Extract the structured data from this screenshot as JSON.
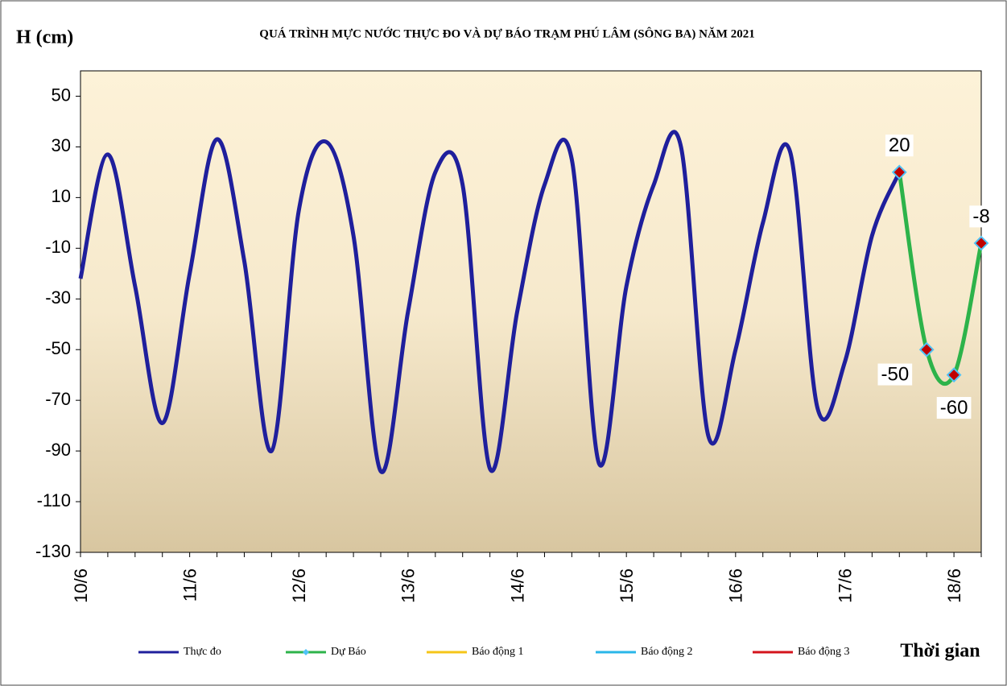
{
  "chart_data": {
    "type": "line",
    "title": "QUÁ TRÌNH MỰC NƯỚC THỰC ĐO VÀ DỰ BÁO TRẠM PHÚ LÂM (SÔNG BA) NĂM 2021",
    "y_label": "H (cm)",
    "x_label": "Thời gian",
    "categories": [
      "10/6",
      null,
      null,
      null,
      "11/6",
      null,
      null,
      null,
      "12/6",
      null,
      null,
      null,
      "13/6",
      null,
      null,
      null,
      "14/6",
      null,
      null,
      null,
      "15/6",
      null,
      null,
      null,
      "16/6",
      null,
      null,
      null,
      "17/6",
      null,
      null,
      null,
      "18/6",
      null
    ],
    "series": [
      {
        "name": "Thực đo",
        "color": "#1f1f9c",
        "marker": false,
        "values": [
          -22,
          27,
          -25,
          -79,
          -20,
          33,
          -15,
          -90,
          5,
          32,
          -5,
          -98,
          -35,
          20,
          15,
          -97,
          -35,
          15,
          25,
          -95,
          -25,
          15,
          30,
          -84,
          -50,
          0,
          28,
          -73,
          -55,
          -5,
          20,
          null,
          null,
          null
        ]
      },
      {
        "name": "Dự Báo",
        "color": "#2db34a",
        "marker": true,
        "values": [
          null,
          null,
          null,
          null,
          null,
          null,
          null,
          null,
          null,
          null,
          null,
          null,
          null,
          null,
          null,
          null,
          null,
          null,
          null,
          null,
          null,
          null,
          null,
          null,
          null,
          null,
          null,
          null,
          null,
          null,
          20,
          -50,
          -60,
          -8
        ]
      },
      {
        "name": "Báo động 1",
        "color": "#f5c518",
        "marker": false,
        "values": [
          null,
          null,
          null,
          null,
          null,
          null,
          null,
          null,
          null,
          null,
          null,
          null,
          null,
          null,
          null,
          null,
          null,
          null,
          null,
          null,
          null,
          null,
          null,
          null,
          null,
          null,
          null,
          null,
          null,
          null,
          null,
          null,
          null,
          null
        ]
      },
      {
        "name": "Báo động 2",
        "color": "#29b6e8",
        "marker": false,
        "values": [
          null,
          null,
          null,
          null,
          null,
          null,
          null,
          null,
          null,
          null,
          null,
          null,
          null,
          null,
          null,
          null,
          null,
          null,
          null,
          null,
          null,
          null,
          null,
          null,
          null,
          null,
          null,
          null,
          null,
          null,
          null,
          null,
          null,
          null
        ]
      },
      {
        "name": "Báo động 3",
        "color": "#d4141c",
        "marker": false,
        "values": [
          null,
          null,
          null,
          null,
          null,
          null,
          null,
          null,
          null,
          null,
          null,
          null,
          null,
          null,
          null,
          null,
          null,
          null,
          null,
          null,
          null,
          null,
          null,
          null,
          null,
          null,
          null,
          null,
          null,
          null,
          null,
          null,
          null,
          null
        ]
      }
    ],
    "ylim": [
      -130,
      60
    ],
    "yticks": [
      50,
      30,
      10,
      -10,
      -30,
      -50,
      -70,
      -90,
      -110,
      -130
    ],
    "grid": false
  }
}
